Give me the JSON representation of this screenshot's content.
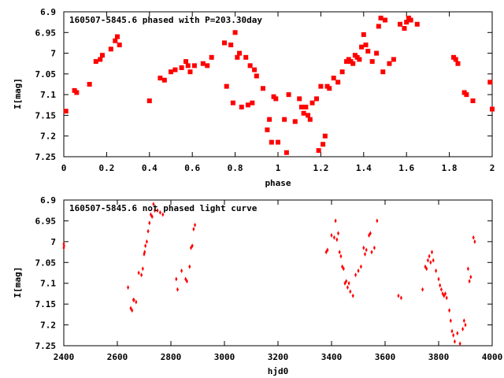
{
  "chart_data": [
    {
      "type": "scatter",
      "title": "160507-5845.6 phased with P=203.30day",
      "xlabel": "phase",
      "ylabel": "I[mag]",
      "xlim": [
        0,
        2
      ],
      "ylim": [
        7.25,
        6.9
      ],
      "y_inverted": true,
      "x_ticks": [
        "0",
        "0.2",
        "0.4",
        "0.6",
        "0.8",
        "1",
        "1.2",
        "1.4",
        "1.6",
        "1.8",
        "2"
      ],
      "y_ticks": [
        "6.9",
        "6.95",
        "7",
        "7.05",
        "7.1",
        "7.15",
        "7.2",
        "7.25"
      ],
      "marker_color": "#ff0000",
      "series": [
        {
          "x": [
            0.01,
            0.05,
            0.06,
            0.12,
            0.15,
            0.17,
            0.18,
            0.22,
            0.24,
            0.25,
            0.26,
            0.4,
            0.45,
            0.47,
            0.5,
            0.52,
            0.55,
            0.57,
            0.58,
            0.59,
            0.61,
            0.65,
            0.67,
            0.69,
            0.75,
            0.76,
            0.78,
            0.79,
            0.8,
            0.81,
            0.82,
            0.83,
            0.85,
            0.86,
            0.87,
            0.88,
            0.89,
            0.9,
            0.93,
            0.95,
            0.96,
            0.97,
            0.98,
            0.99,
            1.0,
            1.03,
            1.04,
            1.05,
            1.08,
            1.1,
            1.11,
            1.12,
            1.13,
            1.14,
            1.15,
            1.16,
            1.18,
            1.19,
            1.2,
            1.21,
            1.22,
            1.23,
            1.24,
            1.26,
            1.28,
            1.3,
            1.32,
            1.33,
            1.34,
            1.35,
            1.36,
            1.37,
            1.38,
            1.39,
            1.4,
            1.41,
            1.42,
            1.44,
            1.46,
            1.47,
            1.48,
            1.49,
            1.5,
            1.52,
            1.54,
            1.57,
            1.59,
            1.6,
            1.61,
            1.62,
            1.65,
            1.82,
            1.83,
            1.84,
            1.87,
            1.88,
            1.91,
            1.99,
            2.0
          ],
          "y": [
            7.14,
            7.09,
            7.095,
            7.075,
            7.02,
            7.015,
            7.005,
            6.99,
            6.97,
            6.96,
            6.98,
            7.115,
            7.06,
            7.065,
            7.045,
            7.04,
            7.035,
            7.02,
            7.03,
            7.045,
            7.03,
            7.025,
            7.03,
            7.01,
            6.975,
            7.08,
            6.98,
            7.12,
            6.95,
            7.01,
            7.0,
            7.13,
            7.01,
            7.125,
            7.03,
            7.12,
            7.04,
            7.055,
            7.085,
            7.185,
            7.16,
            7.215,
            7.105,
            7.11,
            7.215,
            7.16,
            7.24,
            7.1,
            7.165,
            7.11,
            7.13,
            7.145,
            7.13,
            7.15,
            7.16,
            7.12,
            7.11,
            7.235,
            7.08,
            7.22,
            7.2,
            7.08,
            7.085,
            7.06,
            7.07,
            7.045,
            7.02,
            7.015,
            7.02,
            7.025,
            7.005,
            7.01,
            7.015,
            6.985,
            6.955,
            6.98,
            6.995,
            7.02,
            7.0,
            6.935,
            6.915,
            7.045,
            6.92,
            7.025,
            7.015,
            6.93,
            6.94,
            6.925,
            6.915,
            6.92,
            6.93,
            7.01,
            7.015,
            7.025,
            7.095,
            7.1,
            7.115,
            7.07,
            7.135
          ]
        }
      ]
    },
    {
      "type": "scatter",
      "title": "160507-5845.6 not phased light curve",
      "xlabel": "hjd0",
      "ylabel": "I[mag]",
      "xlim": [
        2400,
        4000
      ],
      "ylim": [
        7.25,
        6.9
      ],
      "y_inverted": true,
      "x_ticks": [
        "2400",
        "2600",
        "2800",
        "3000",
        "3200",
        "3400",
        "3600",
        "3800",
        "4000"
      ],
      "y_ticks": [
        "6.9",
        "6.95",
        "7",
        "7.05",
        "7.1",
        "7.15",
        "7.2",
        "7.25"
      ],
      "marker_color": "#ff0000",
      "series": [
        {
          "x": [
            2400,
            2400,
            2401,
            2640,
            2650,
            2655,
            2660,
            2662,
            2670,
            2680,
            2690,
            2695,
            2700,
            2702,
            2705,
            2710,
            2715,
            2720,
            2725,
            2730,
            2735,
            2740,
            2750,
            2760,
            2770,
            2820,
            2825,
            2840,
            2855,
            2860,
            2870,
            2875,
            2880,
            2885,
            2890,
            3380,
            3385,
            3400,
            3410,
            3415,
            3420,
            3425,
            3430,
            3435,
            3440,
            3445,
            3450,
            3455,
            3460,
            3465,
            3470,
            3480,
            3490,
            3500,
            3510,
            3520,
            3525,
            3530,
            3540,
            3545,
            3550,
            3560,
            3570,
            3650,
            3660,
            3740,
            3750,
            3755,
            3760,
            3765,
            3770,
            3775,
            3780,
            3790,
            3800,
            3805,
            3810,
            3815,
            3820,
            3825,
            3830,
            3840,
            3845,
            3850,
            3855,
            3860,
            3870,
            3880,
            3890,
            3895,
            3900,
            3910,
            3915,
            3920,
            3930,
            3935
          ],
          "y": [
            7.015,
            7.005,
            7.01,
            7.11,
            7.16,
            7.165,
            7.14,
            7.14,
            7.145,
            7.075,
            7.08,
            7.065,
            7.03,
            7.025,
            7.01,
            7.0,
            6.975,
            6.955,
            6.935,
            6.94,
            6.91,
            6.925,
            6.925,
            6.93,
            6.935,
            7.09,
            7.115,
            7.07,
            7.09,
            7.095,
            7.06,
            7.015,
            7.01,
            6.97,
            6.96,
            7.025,
            7.02,
            6.985,
            6.99,
            6.95,
            6.995,
            6.98,
            7.025,
            7.035,
            7.06,
            7.065,
            7.1,
            7.095,
            7.11,
            7.1,
            7.12,
            7.13,
            7.08,
            7.07,
            7.06,
            7.015,
            7.03,
            7.02,
            6.985,
            6.98,
            7.025,
            7.015,
            6.95,
            7.13,
            7.135,
            7.115,
            7.06,
            7.065,
            7.045,
            7.035,
            7.05,
            7.025,
            7.045,
            7.07,
            7.09,
            7.105,
            7.115,
            7.125,
            7.13,
            7.125,
            7.135,
            7.165,
            7.19,
            7.215,
            7.225,
            7.24,
            7.22,
            7.245,
            7.21,
            7.19,
            7.2,
            7.065,
            7.095,
            7.085,
            6.99,
            7.0
          ]
        }
      ]
    }
  ]
}
